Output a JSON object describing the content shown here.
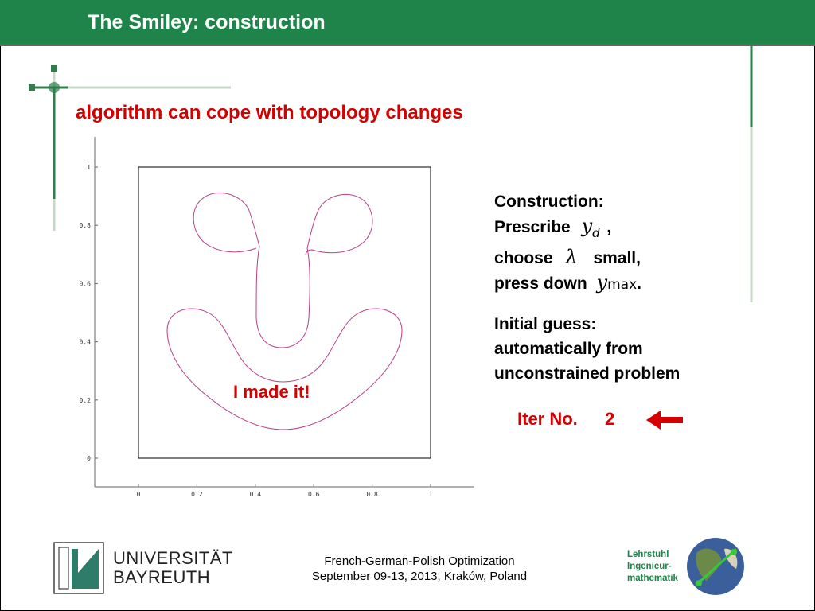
{
  "header": {
    "title": "The Smiley: construction"
  },
  "main": {
    "subtitle": "algorithm can cope with topology changes",
    "construction": {
      "line1": "Construction:",
      "prescribe": "Prescribe",
      "y_symbol": "y",
      "y_sub": "d",
      "comma": ",",
      "choose": "choose",
      "lambda_symbol": "λ",
      "small": "small,",
      "press_down": "press down",
      "ymax_symbol": "y",
      "ymax_sub": "max",
      "period": "."
    },
    "initial_guess": {
      "line1": "Initial guess:",
      "line2": "automatically from",
      "line3": "unconstrained problem"
    },
    "iter_label": "Iter No.",
    "iter_value": "2",
    "made_it": "I made it!"
  },
  "chart_data": {
    "type": "line",
    "xlim": [
      0,
      1
    ],
    "ylim": [
      0,
      1
    ],
    "x_ticks": [
      "0",
      "0.2",
      "0.4",
      "0.6",
      "0.8",
      "1"
    ],
    "y_ticks": [
      "0",
      "0.2",
      "0.4",
      "0.6",
      "0.8",
      "1"
    ],
    "series_color": "#b8408a"
  },
  "footer": {
    "university_line1": "UNIVERSITÄT",
    "university_line2": "BAYREUTH",
    "conference_line1": "French-German-Polish Optimization",
    "conference_line2": "September 09-13, 2013, Kraków, Poland",
    "chair_line1": "Lehrstuhl",
    "chair_line2": "Ingenieur-",
    "chair_line3": "mathematik"
  },
  "colors": {
    "header_green": "#1e8449",
    "accent_red": "#d40000"
  }
}
